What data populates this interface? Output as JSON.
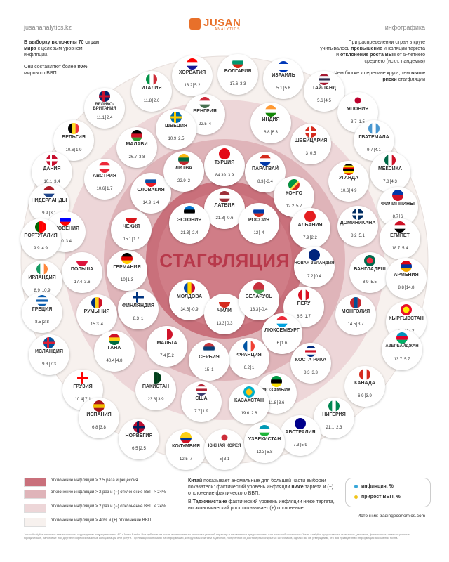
{
  "header": {
    "site": "jusananalytics.kz",
    "logo_name": "JUSAN",
    "logo_sub": "ANALYTICS",
    "kind": "инфографика"
  },
  "notes": {
    "left_1a": "В выборку включены 70 стран",
    "left_1b": "мира",
    "left_1c": " с целевым уровнем инфляции.",
    "left_2a": "Они составляют более ",
    "left_2b": "80%",
    "left_2c": " мирового ВВП.",
    "right_1a": "При распределении стран в круге учитывалось ",
    "right_1b": "превышение",
    "right_1c": " инфляции таргета и ",
    "right_1d": "отклонение роста ВВП",
    "right_1e": " от 5-летнего среднего (искл. пандемия)",
    "right_2a": "Чем ближе к середине круга, тем ",
    "right_2b": "выше риски",
    "right_2c": " стагфляции"
  },
  "center_title": "СТАГФЛЯЦИЯ",
  "colors": {
    "ring_outer": "#f7f1ee",
    "ring_2": "#edd6d8",
    "ring_3": "#dfb4b9",
    "ring_core": "#c9707b",
    "title": "#b8394b",
    "inflation_dot": "#39a7d8",
    "gdp_dot": "#f0c419"
  },
  "countries": [
    {
      "name": "ЛАТВИЯ",
      "infl": "21.8",
      "gdp": "-0.6",
      "flag": "latvia"
    },
    {
      "name": "ЭСТОНИЯ",
      "infl": "21.3",
      "gdp": "-2.4",
      "flag": "estonia"
    },
    {
      "name": "РОССИЯ",
      "infl": "12",
      "gdp": "-4",
      "flag": "russia"
    },
    {
      "name": "МОЛДОВА",
      "infl": "34.6",
      "gdp": "-0.9",
      "flag": "moldova"
    },
    {
      "name": "ЧИЛИ",
      "infl": "13.3",
      "gdp": "0.3",
      "flag": "chile"
    },
    {
      "name": "БЕЛАРУСЬ",
      "infl": "13.3",
      "gdp": "-0.4",
      "flag": "belarus"
    },
    {
      "name": "ТУРЦИЯ",
      "infl": "84.39",
      "gdp": "3.9",
      "flag": "turkey"
    },
    {
      "name": "ПАРАГВАЙ",
      "infl": "8.3",
      "gdp": "-3.4",
      "flag": "paraguay"
    },
    {
      "name": "КОНГО",
      "infl": "12.2",
      "gdp": "5.7",
      "flag": "congo"
    },
    {
      "name": "АЛБАНИЯ",
      "infl": "7.9",
      "gdp": "2.2",
      "flag": "albania"
    },
    {
      "name": "НОВАЯ ЗЕЛАНДИЯ",
      "infl": "7.2",
      "gdp": "0.4",
      "flag": "nz"
    },
    {
      "name": "ПЕРУ",
      "infl": "8.5",
      "gdp": "1.7",
      "flag": "peru"
    },
    {
      "name": "ЛЮКСЕМБУРГ",
      "infl": "6",
      "gdp": "1.6",
      "flag": "luxembourg"
    },
    {
      "name": "ФРАНЦИЯ",
      "infl": "6.2",
      "gdp": "1",
      "flag": "france"
    },
    {
      "name": "СЕРБИЯ",
      "infl": "15",
      "gdp": "1",
      "flag": "serbia"
    },
    {
      "name": "МАЛЬТА",
      "infl": "7.4",
      "gdp": "5.2",
      "flag": "malta"
    },
    {
      "name": "ФИНЛЯНДИЯ",
      "infl": "8.3",
      "gdp": "1",
      "flag": "finland"
    },
    {
      "name": "ГЕРМАНИЯ",
      "infl": "10",
      "gdp": "1.3",
      "flag": "germany"
    },
    {
      "name": "ЧЕХИЯ",
      "infl": "15.1",
      "gdp": "1.7",
      "flag": "czech"
    },
    {
      "name": "СЛОВАКИЯ",
      "infl": "14.9",
      "gdp": "1.4",
      "flag": "slovakia"
    },
    {
      "name": "ЛИТВА",
      "infl": "22.9",
      "gdp": "2",
      "flag": "lithuania"
    },
    {
      "name": "ХОРВАТИЯ",
      "infl": "13.2",
      "gdp": "5.2",
      "flag": "croatia"
    },
    {
      "name": "БОЛГАРИЯ",
      "infl": "17.6",
      "gdp": "3.3",
      "flag": "bulgaria"
    },
    {
      "name": "ИЗРАИЛЬ",
      "infl": "5.1",
      "gdp": "5.8",
      "flag": "israel"
    },
    {
      "name": "ТАЙЛАНД",
      "infl": "5.6",
      "gdp": "4.5",
      "flag": "thailand"
    },
    {
      "name": "ВЕНГРИЯ",
      "infl": "22.5",
      "gdp": "4",
      "flag": "hungary"
    },
    {
      "name": "ИНДИЯ",
      "infl": "6.8",
      "gdp": "6.3",
      "flag": "india"
    },
    {
      "name": "ИТАЛИЯ",
      "infl": "11.8",
      "gdp": "2.6",
      "flag": "italy"
    },
    {
      "name": "ВЕЛИКО-БРИТАНИЯ",
      "infl": "11.1",
      "gdp": "2.4",
      "flag": "uk"
    },
    {
      "name": "ШВЕЦИЯ",
      "infl": "10.9",
      "gdp": "2.5",
      "flag": "sweden"
    },
    {
      "name": "ЯПОНИЯ",
      "infl": "3.7",
      "gdp": "1.5",
      "flag": "japan"
    },
    {
      "name": "ШВЕЙЦАРИЯ",
      "infl": "3",
      "gdp": "0.5",
      "flag": "switzerland"
    },
    {
      "name": "ГВАТЕМАЛА",
      "infl": "9.7",
      "gdp": "4.1",
      "flag": "guatemala"
    },
    {
      "name": "БЕЛЬГИЯ",
      "infl": "10.6",
      "gdp": "1.9",
      "flag": "belgium"
    },
    {
      "name": "МАЛАВИ",
      "infl": "26.7",
      "gdp": "3.8",
      "flag": "malawi"
    },
    {
      "name": "ДАНИЯ",
      "infl": "10.1",
      "gdp": "3.4",
      "flag": "denmark"
    },
    {
      "name": "АВСТРИЯ",
      "infl": "10.6",
      "gdp": "1.7",
      "flag": "austria"
    },
    {
      "name": "УГАНДА",
      "infl": "10.6",
      "gdp": "4.9",
      "flag": "uganda"
    },
    {
      "name": "МЕКСИКА",
      "infl": "7.8",
      "gdp": "4.3",
      "flag": "mexico"
    },
    {
      "name": "НИДЕРЛАНДЫ",
      "infl": "9.9",
      "gdp": "3.1",
      "flag": "netherlands"
    },
    {
      "name": "ФИЛИППИНЫ",
      "infl": "8.7",
      "gdp": "6",
      "flag": "philippines"
    },
    {
      "name": "СЛОВЕНИЯ",
      "infl": "10",
      "gdp": "3.4",
      "flag": "slovenia"
    },
    {
      "name": "ДОМИНИКАНА",
      "infl": "8.2",
      "gdp": "5.1",
      "flag": "dominicana"
    },
    {
      "name": "ПОРТУГАЛИЯ",
      "infl": "9.9",
      "gdp": "4.9",
      "flag": "portugal"
    },
    {
      "name": "ЕГИПЕТ",
      "infl": "18.7",
      "gdp": "5.4",
      "flag": "egypt"
    },
    {
      "name": "ПОЛЬША",
      "infl": "17.4",
      "gdp": "3.6",
      "flag": "poland"
    },
    {
      "name": "БАНГЛАДЕШ",
      "infl": "8.9",
      "gdp": "5.5",
      "flag": "bangladesh"
    },
    {
      "name": "ИРЛАНДИЯ",
      "infl": "8.9",
      "gdp": "10.9",
      "flag": "ireland"
    },
    {
      "name": "АРМЕНИЯ",
      "infl": "8.8",
      "gdp": "14.8",
      "flag": "armenia"
    },
    {
      "name": "ГРЕЦИЯ",
      "infl": "8.5",
      "gdp": "2.8",
      "flag": "greece"
    },
    {
      "name": "РУМЫНИЯ",
      "infl": "15.3",
      "gdp": "4",
      "flag": "romania"
    },
    {
      "name": "МОНГОЛИЯ",
      "infl": "14.5",
      "gdp": "3.7",
      "flag": "mongolia"
    },
    {
      "name": "КЫРГЫЗСТАН",
      "infl": "15.4",
      "gdp": "7.2",
      "flag": "kyrgyzstan"
    },
    {
      "name": "ИСЛАНДИЯ",
      "infl": "9.3",
      "gdp": "7.3",
      "flag": "iceland"
    },
    {
      "name": "ГАНА",
      "infl": "40.4",
      "gdp": "4.8",
      "flag": "ghana"
    },
    {
      "name": "КОСТА РИКА",
      "infl": "8.3",
      "gdp": "3.3",
      "flag": "costarica"
    },
    {
      "name": "АЗЕРБАЙДЖАН",
      "infl": "13.7",
      "gdp": "5.7",
      "flag": "azerbaijan"
    },
    {
      "name": "ГРУЗИЯ",
      "infl": "10.4",
      "gdp": "7.1",
      "flag": "georgia"
    },
    {
      "name": "ПАКИСТАН",
      "infl": "23.8",
      "gdp": "3.9",
      "flag": "pakistan"
    },
    {
      "name": "МОЗАМБИК",
      "infl": "11.8",
      "gdp": "3.6",
      "flag": "mozambique"
    },
    {
      "name": "КАНАДА",
      "infl": "6.9",
      "gdp": "3.9",
      "flag": "canada"
    },
    {
      "name": "США",
      "infl": "7.7",
      "gdp": "1.9",
      "flag": "usa"
    },
    {
      "name": "КАЗАХСТАН",
      "infl": "19.6",
      "gdp": "2.8",
      "flag": "kazakhstan"
    },
    {
      "name": "ИСПАНИЯ",
      "infl": "6.8",
      "gdp": "3.8",
      "flag": "spain"
    },
    {
      "name": "НИГЕРИЯ",
      "infl": "21.1",
      "gdp": "2.3",
      "flag": "nigeria"
    },
    {
      "name": "НОРВЕГИЯ",
      "infl": "6.5",
      "gdp": "2.5",
      "flag": "norway"
    },
    {
      "name": "АВСТРАЛИЯ",
      "infl": "7.3",
      "gdp": "5.9",
      "flag": "australia"
    },
    {
      "name": "КОЛУМБИЯ",
      "infl": "12.5",
      "gdp": "7",
      "flag": "colombia"
    },
    {
      "name": "ЮЖНАЯ КОРЕЯ",
      "infl": "5",
      "gdp": "3.1",
      "flag": "korea"
    },
    {
      "name": "УЗБЕКИСТАН",
      "infl": "12.3",
      "gdp": "5.8",
      "flag": "uzbekistan"
    }
  ],
  "legend": [
    {
      "text": "отклонение инфляции > 2.5 раза и рецессия",
      "color": "#c9707b"
    },
    {
      "text": "отклонение инфляции > 2 раз и (−) отклонение ВВП > 24%",
      "color": "#dfb4b9"
    },
    {
      "text": "отклонение инфляции > 2 раз и (−) отклонение ВВП < 24%",
      "color": "#edd6d8"
    },
    {
      "text": "отклонение инфляции > 40% и (+) отклонение ВВП",
      "color": "#f7f1ee"
    }
  ],
  "note_mid": {
    "p1a": "Китай",
    "p1b": " показывает аномальные для большей части выборки показатели: фактический уровень инфляции ",
    "p1c": "ниже",
    "p1d": " таргета и (−) отклонение фактического ВВП.",
    "p2a": "В ",
    "p2b": "Таджикистане",
    "p2c": " фактический уровень инфляции ниже таргета, но экономический рост показывает (+) отклонение"
  },
  "value_key": {
    "inflation": "инфляция, %",
    "gdp": "прирост ВВП, %"
  },
  "source": "Источник: tradingeconomics.com",
  "disclaimer": "Jusan Analytics является аналитическим структурным подразделением АО «Jusan Bank». Все публикации носят исключительно информационный характер и не являются предложением или попыткой со стороны Jusan Analytics предоставить отчетность, деловые, финансовые, инвестиционные, юридические, налоговые или другие профессиональные консультации или услуги. Публикации основаны на информации, которую мы считаем надежной, полученной из достоверных открытых источников, однако мы не утверждаем, что вся приведенная информация абсолютно точна."
}
